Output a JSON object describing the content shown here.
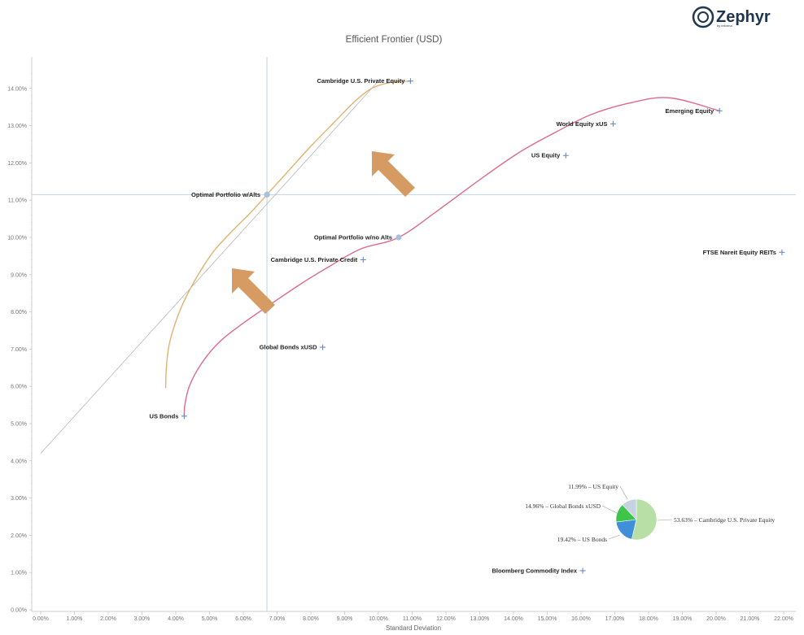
{
  "logo": {
    "name": "Zephyr",
    "tagline": "by informa"
  },
  "colors": {
    "with_alts": "#e2b270",
    "no_alts": "#dc6b8c",
    "capital_line": "#b8b8b8",
    "marker": "#6d87c4",
    "optimal": "#a9c0dc",
    "crosshair": "#c2d4e0",
    "arrow": "#d69a63"
  },
  "chart_data": {
    "type": "scatter",
    "title": "Efficient Frontier (USD)",
    "xlabel": "Standard Deviation",
    "ylabel": "",
    "xlim": [
      0,
      22
    ],
    "ylim": [
      0,
      14.5
    ],
    "x_ticks": [
      "0.00%",
      "1.00%",
      "2.00%",
      "3.00%",
      "4.00%",
      "5.00%",
      "6.00%",
      "7.00%",
      "8.00%",
      "9.00%",
      "10.00%",
      "11.00%",
      "12.00%",
      "13.00%",
      "14.00%",
      "15.00%",
      "16.00%",
      "17.00%",
      "18.00%",
      "19.00%",
      "20.00%",
      "21.00%",
      "22.00%"
    ],
    "y_ticks": [
      "0.00%",
      "1.00%",
      "2.00%",
      "3.00%",
      "4.00%",
      "5.00%",
      "6.00%",
      "7.00%",
      "8.00%",
      "9.00%",
      "10.00%",
      "11.00%",
      "12.00%",
      "13.00%",
      "14.00%"
    ],
    "assets": [
      {
        "label": "Cambridge U.S. Private Equity",
        "x": 10.95,
        "y": 14.2
      },
      {
        "label": "Emerging Equity",
        "x": 20.1,
        "y": 13.4
      },
      {
        "label": "World Equity xUS",
        "x": 16.95,
        "y": 13.05
      },
      {
        "label": "US Equity",
        "x": 15.55,
        "y": 12.2
      },
      {
        "label": "FTSE Nareit Equity REITs",
        "x": 21.95,
        "y": 9.6
      },
      {
        "label": "Cambridge U.S. Private Credit",
        "x": 9.55,
        "y": 9.4
      },
      {
        "label": "Global Bonds xUSD",
        "x": 8.35,
        "y": 7.05
      },
      {
        "label": "US Bonds",
        "x": 4.25,
        "y": 5.2
      },
      {
        "label": "Bloomberg Commodity Index",
        "x": 16.05,
        "y": 1.05
      }
    ],
    "optimal_points": [
      {
        "label": "Optimal Portfolio w/Alts",
        "x": 6.7,
        "y": 11.15
      },
      {
        "label": "Optimal Portfolio w/no Alts",
        "x": 10.6,
        "y": 10.0
      }
    ],
    "series": [
      {
        "values": [
          [
            3.7,
            5.95
          ],
          [
            3.72,
            6.5
          ],
          [
            3.8,
            7.1
          ],
          [
            3.95,
            7.6
          ],
          [
            4.2,
            8.2
          ],
          [
            4.6,
            8.9
          ],
          [
            5.1,
            9.6
          ],
          [
            5.7,
            10.2
          ],
          [
            6.2,
            10.65
          ],
          [
            6.7,
            11.15
          ],
          [
            7.3,
            11.75
          ],
          [
            8.0,
            12.45
          ],
          [
            8.7,
            13.1
          ],
          [
            9.3,
            13.65
          ],
          [
            9.8,
            14.0
          ],
          [
            10.3,
            14.15
          ],
          [
            10.95,
            14.2
          ]
        ]
      },
      {
        "values": [
          [
            4.25,
            5.2
          ],
          [
            4.27,
            5.5
          ],
          [
            4.4,
            6.0
          ],
          [
            4.75,
            6.6
          ],
          [
            5.3,
            7.2
          ],
          [
            6.0,
            7.7
          ],
          [
            6.8,
            8.2
          ],
          [
            7.7,
            8.75
          ],
          [
            8.6,
            9.25
          ],
          [
            9.5,
            9.7
          ],
          [
            10.6,
            10.0
          ],
          [
            11.8,
            10.75
          ],
          [
            13.0,
            11.55
          ],
          [
            14.2,
            12.3
          ],
          [
            15.3,
            12.85
          ],
          [
            16.3,
            13.3
          ],
          [
            17.4,
            13.6
          ],
          [
            18.6,
            13.75
          ],
          [
            20.1,
            13.4
          ]
        ]
      },
      {
        "values": [
          [
            0.0,
            4.2
          ],
          [
            10.0,
            14.2
          ]
        ]
      }
    ],
    "pie": {
      "slices": [
        {
          "label": "53.63% – Cambridge U.S. Private Equity",
          "value": 53.63,
          "color": "#b8dfa6"
        },
        {
          "label": "19.42% – US Bonds",
          "value": 19.42,
          "color": "#3f8fd9"
        },
        {
          "label": "14.96% – Global Bonds xUSD",
          "value": 14.96,
          "color": "#3cc548"
        },
        {
          "label": "11.99% – US Equity",
          "value": 11.99,
          "color": "#c5d2e2"
        }
      ]
    }
  }
}
